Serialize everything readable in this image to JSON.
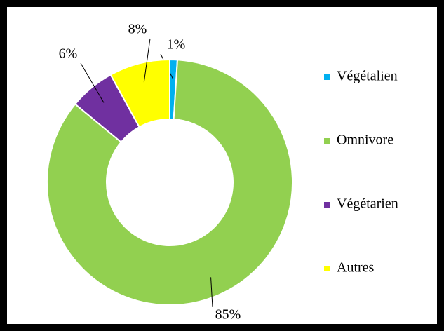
{
  "chart_data": {
    "type": "donut",
    "categories": [
      "Végétalien",
      "Omnivore",
      "Végétarien",
      "Autres"
    ],
    "values": [
      1,
      85,
      6,
      8
    ],
    "value_labels": [
      "1%",
      "85%",
      "6%",
      "8%"
    ],
    "colors": [
      "#00b0f0",
      "#92d050",
      "#7030a0",
      "#ffff00"
    ],
    "legend": "right"
  }
}
